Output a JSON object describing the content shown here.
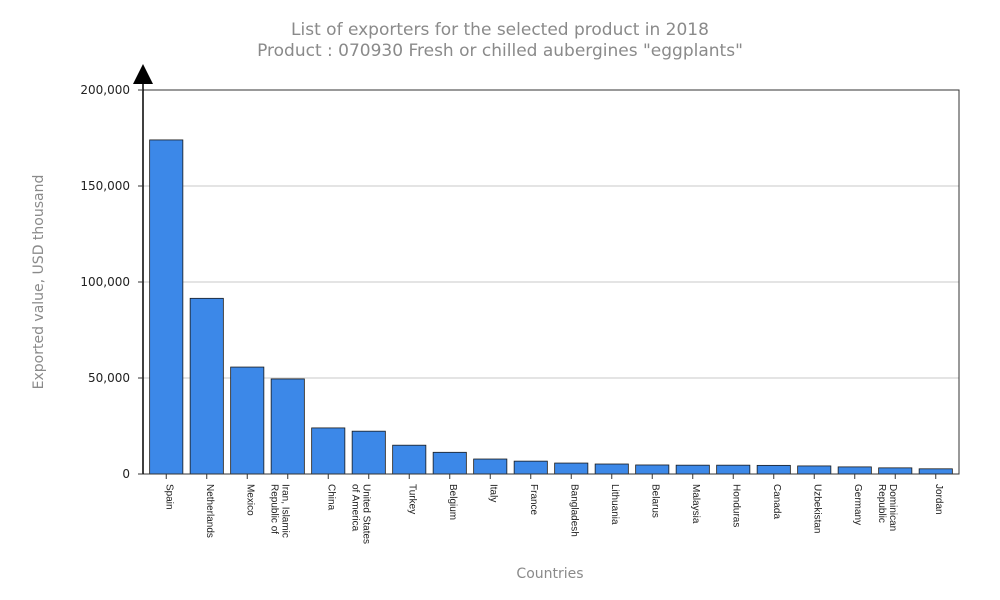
{
  "chart_data": {
    "type": "bar",
    "title": "List of exporters for the selected product in 2018",
    "subtitle": "Product : 070930 Fresh or chilled aubergines \"eggplants\"",
    "xlabel": "Countries",
    "ylabel": "Exported value, USD thousand",
    "ylim": [
      0,
      200000
    ],
    "yticks": [
      0,
      50000,
      100000,
      150000,
      200000
    ],
    "ytick_labels": [
      "0",
      "50,000",
      "100,000",
      "150,000",
      "200,000"
    ],
    "grid": true,
    "bar_color": "#3c88e8",
    "categories": [
      [
        "Spain"
      ],
      [
        "Netherlands"
      ],
      [
        "Mexico"
      ],
      [
        "Iran, Islamic",
        "Republic of"
      ],
      [
        "China"
      ],
      [
        "United States",
        "of America"
      ],
      [
        "Turkey"
      ],
      [
        "Belgium"
      ],
      [
        "Italy"
      ],
      [
        "France"
      ],
      [
        "Bangladesh"
      ],
      [
        "Lithuania"
      ],
      [
        "Belarus"
      ],
      [
        "Malaysia"
      ],
      [
        "Honduras"
      ],
      [
        "Canada"
      ],
      [
        "Uzbekistan"
      ],
      [
        "Germany"
      ],
      [
        "Dominican",
        "Republic"
      ],
      [
        "Jordan"
      ]
    ],
    "values": [
      174000,
      91500,
      55700,
      49500,
      24000,
      22300,
      15000,
      11300,
      7800,
      6700,
      5700,
      5200,
      4700,
      4600,
      4600,
      4500,
      4200,
      3700,
      3200,
      2700
    ]
  }
}
